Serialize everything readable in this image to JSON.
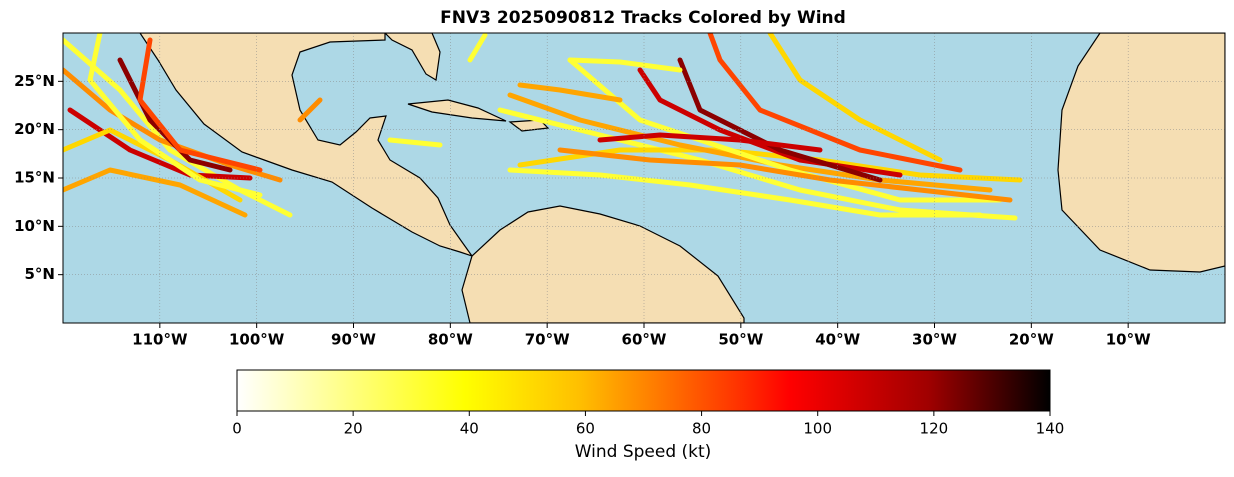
{
  "chart_data": {
    "type": "map",
    "title": "FNV3 2025090812 Tracks Colored by Wind",
    "xlim": [
      -120,
      0
    ],
    "ylim": [
      0,
      30
    ],
    "xticks": [
      {
        "value": -110,
        "label": "110°W"
      },
      {
        "value": -100,
        "label": "100°W"
      },
      {
        "value": -90,
        "label": "90°W"
      },
      {
        "value": -80,
        "label": "80°W"
      },
      {
        "value": -70,
        "label": "70°W"
      },
      {
        "value": -60,
        "label": "60°W"
      },
      {
        "value": -50,
        "label": "50°W"
      },
      {
        "value": -40,
        "label": "40°W"
      },
      {
        "value": -30,
        "label": "30°W"
      },
      {
        "value": -20,
        "label": "20°W"
      },
      {
        "value": -10,
        "label": "10°W"
      }
    ],
    "yticks": [
      {
        "value": 5,
        "label": "5°N"
      },
      {
        "value": 10,
        "label": "10°N"
      },
      {
        "value": 15,
        "label": "15°N"
      },
      {
        "value": 20,
        "label": "20°N"
      },
      {
        "value": 25,
        "label": "25°N"
      }
    ],
    "grid": true,
    "colorbar": {
      "label": "Wind Speed (kt)",
      "lim": [
        0,
        140
      ],
      "ticks": [
        0,
        20,
        40,
        60,
        80,
        100,
        120,
        140
      ]
    }
  }
}
